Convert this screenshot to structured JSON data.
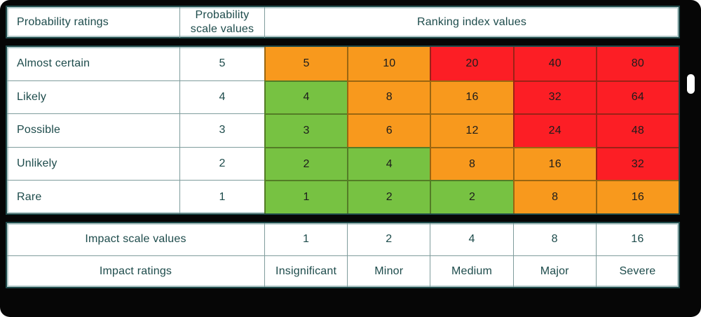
{
  "accent_colors": {
    "green": "#77c242",
    "orange": "#f8991d",
    "red": "#fc1e25",
    "teal_text": "#1d4b4b",
    "table_border": "#1f4a4a",
    "background": "#060606"
  },
  "header": {
    "probability_ratings": "Probability ratings",
    "probability_scale_values": "Probability scale values",
    "ranking_index_values": "Ranking index values"
  },
  "matrix": {
    "rows": [
      {
        "label": "Almost certain",
        "scale": "5",
        "cells": [
          {
            "v": "5",
            "c": "orange"
          },
          {
            "v": "10",
            "c": "orange"
          },
          {
            "v": "20",
            "c": "red"
          },
          {
            "v": "40",
            "c": "red"
          },
          {
            "v": "80",
            "c": "red"
          }
        ]
      },
      {
        "label": "Likely",
        "scale": "4",
        "cells": [
          {
            "v": "4",
            "c": "green"
          },
          {
            "v": "8",
            "c": "orange"
          },
          {
            "v": "16",
            "c": "orange"
          },
          {
            "v": "32",
            "c": "red"
          },
          {
            "v": "64",
            "c": "red"
          }
        ]
      },
      {
        "label": "Possible",
        "scale": "3",
        "cells": [
          {
            "v": "3",
            "c": "green"
          },
          {
            "v": "6",
            "c": "orange"
          },
          {
            "v": "12",
            "c": "orange"
          },
          {
            "v": "24",
            "c": "red"
          },
          {
            "v": "48",
            "c": "red"
          }
        ]
      },
      {
        "label": "Unlikely",
        "scale": "2",
        "cells": [
          {
            "v": "2",
            "c": "green"
          },
          {
            "v": "4",
            "c": "green"
          },
          {
            "v": "8",
            "c": "orange"
          },
          {
            "v": "16",
            "c": "orange"
          },
          {
            "v": "32",
            "c": "red"
          }
        ]
      },
      {
        "label": "Rare",
        "scale": "1",
        "cells": [
          {
            "v": "1",
            "c": "green"
          },
          {
            "v": "2",
            "c": "green"
          },
          {
            "v": "2",
            "c": "green"
          },
          {
            "v": "8",
            "c": "orange"
          },
          {
            "v": "16",
            "c": "orange"
          }
        ]
      }
    ]
  },
  "impact": {
    "scale_label": "Impact scale values",
    "scale_values": [
      "1",
      "2",
      "4",
      "8",
      "16"
    ],
    "ratings_label": "Impact ratings",
    "ratings": [
      "Insignificant",
      "Minor",
      "Medium",
      "Major",
      "Severe"
    ]
  },
  "chart_data": {
    "type": "heatmap",
    "title": "Ranking index values",
    "rows": [
      "Almost certain",
      "Likely",
      "Possible",
      "Unlikely",
      "Rare"
    ],
    "row_axis_label": "Probability ratings",
    "row_scale_values": [
      5,
      4,
      3,
      2,
      1
    ],
    "columns": [
      "Insignificant",
      "Minor",
      "Medium",
      "Major",
      "Severe"
    ],
    "column_axis_label": "Impact ratings",
    "column_scale_values": [
      1,
      2,
      4,
      8,
      16
    ],
    "values": [
      [
        5,
        10,
        20,
        40,
        80
      ],
      [
        4,
        8,
        16,
        32,
        64
      ],
      [
        3,
        6,
        12,
        24,
        48
      ],
      [
        2,
        4,
        8,
        16,
        32
      ],
      [
        1,
        2,
        2,
        8,
        16
      ]
    ],
    "cell_colors": [
      [
        "orange",
        "orange",
        "red",
        "red",
        "red"
      ],
      [
        "green",
        "orange",
        "orange",
        "red",
        "red"
      ],
      [
        "green",
        "orange",
        "orange",
        "red",
        "red"
      ],
      [
        "green",
        "green",
        "orange",
        "orange",
        "red"
      ],
      [
        "green",
        "green",
        "green",
        "orange",
        "orange"
      ]
    ],
    "legend_position": "none",
    "grid": true
  }
}
